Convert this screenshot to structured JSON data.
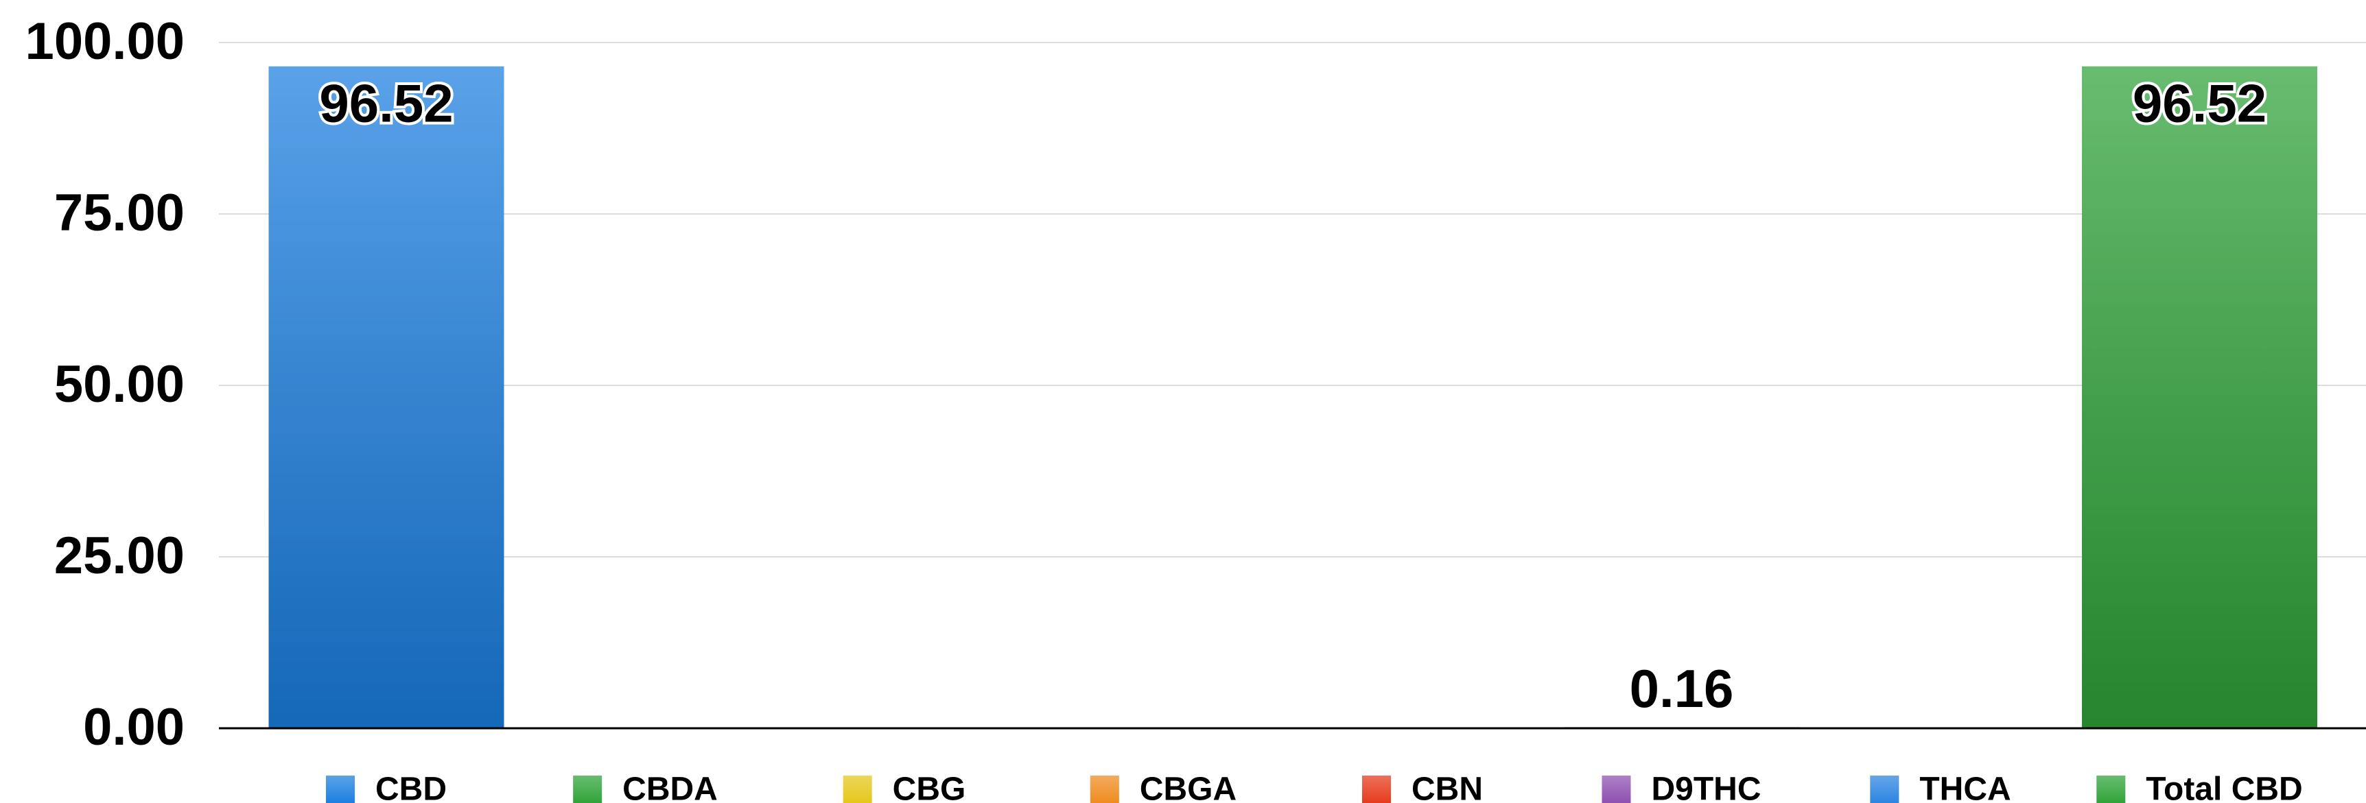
{
  "chart_data": {
    "type": "bar",
    "series": [
      {
        "name": "CBD",
        "color": "#1a7ee0",
        "values": [
          96.52
        ]
      },
      {
        "name": "CBDA",
        "color": "#2ea238",
        "values": [
          null
        ]
      },
      {
        "name": "CBG",
        "color": "#e6c619",
        "values": [
          null
        ]
      },
      {
        "name": "CBGA",
        "color": "#ef8a1e",
        "values": [
          null
        ]
      },
      {
        "name": "CBN",
        "color": "#e5391a",
        "values": [
          null
        ]
      },
      {
        "name": "D9THC",
        "color": "#8e4fb0",
        "values": [
          0.16
        ]
      },
      {
        "name": "THCA",
        "color": "#2a83e0",
        "values": [
          null
        ]
      },
      {
        "name": "Total CBD",
        "color": "#2ea238",
        "values": [
          96.52
        ]
      }
    ],
    "ylim": [
      0,
      100
    ],
    "yticks": [
      {
        "value": 0,
        "label": "0.00"
      },
      {
        "value": 25,
        "label": "25.00"
      },
      {
        "value": 50,
        "label": "50.00"
      },
      {
        "value": 75,
        "label": "75.00"
      },
      {
        "value": 100,
        "label": "100.00"
      }
    ],
    "grid": true,
    "legend": "bottom"
  }
}
